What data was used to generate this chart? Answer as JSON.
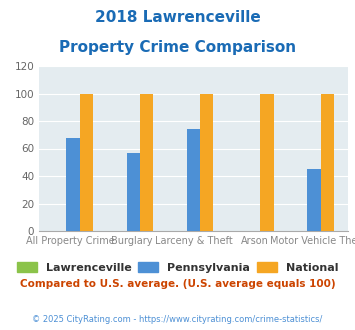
{
  "title_line1": "2018 Lawrenceville",
  "title_line2": "Property Crime Comparison",
  "title_color": "#1a6bb5",
  "groups": [
    "All Property Crime",
    "Burglary",
    "Larceny & Theft",
    "Arson",
    "Motor Vehicle Theft"
  ],
  "group_labels_line1": [
    "",
    "Burglary",
    "",
    "Arson",
    ""
  ],
  "group_labels_line2": [
    "All Property Crime",
    "",
    "Larceny & Theft",
    "",
    "Motor Vehicle Theft"
  ],
  "lawrenceville": [
    0,
    0,
    0,
    0,
    0
  ],
  "pennsylvania": [
    68,
    57,
    74,
    0,
    45
  ],
  "national": [
    100,
    100,
    100,
    100,
    100
  ],
  "colors": {
    "lawrenceville": "#8bc34a",
    "pennsylvania": "#4d90d5",
    "national": "#f5a623"
  },
  "ylim": [
    0,
    120
  ],
  "yticks": [
    0,
    20,
    40,
    60,
    80,
    100,
    120
  ],
  "plot_bg": "#e4ecf0",
  "note": "Compared to U.S. average. (U.S. average equals 100)",
  "note_color": "#cc4400",
  "footer": "© 2025 CityRating.com - https://www.cityrating.com/crime-statistics/",
  "footer_color": "#4d90d5",
  "legend_labels": [
    "Lawrenceville",
    "Pennsylvania",
    "National"
  ]
}
